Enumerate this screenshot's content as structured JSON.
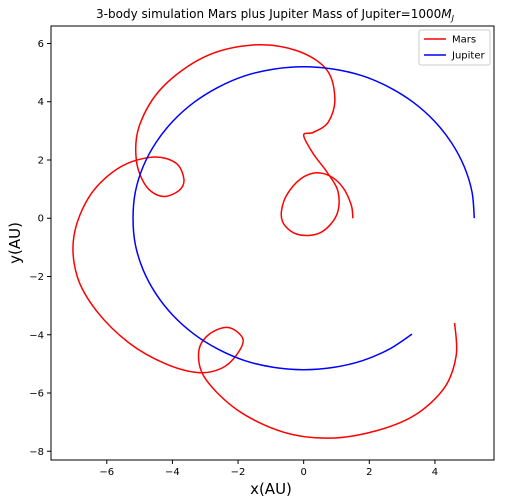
{
  "chart_data": {
    "type": "line",
    "title_main": "3-body simulation  Mars plus Jupiter  Mass of Jupiter=1000",
    "title_sym": "M",
    "title_sub": "J",
    "xlabel": "x(AU)",
    "ylabel": "y(AU)",
    "xlim": [
      -7.7,
      5.8
    ],
    "ylim": [
      -8.3,
      6.6
    ],
    "xticks": [
      -6,
      -4,
      -2,
      0,
      2,
      4
    ],
    "yticks": [
      -8,
      -6,
      -4,
      -2,
      0,
      2,
      4,
      6
    ],
    "grid": false,
    "legend_position": "top-right",
    "series": [
      {
        "name": "Mars",
        "color": "#ff0000",
        "x": [
          1.5,
          1.45,
          1.2,
          0.8,
          0.3,
          -0.2,
          -0.6,
          -0.65,
          -0.2,
          0.5,
          1.0,
          1.05,
          0.7,
          0.3,
          0.0,
          0.3,
          0.75,
          0.95,
          0.7,
          -0.2,
          -1.5,
          -3.0,
          -4.3,
          -5.0,
          -5.1,
          -4.8,
          -4.3,
          -3.8,
          -3.65,
          -3.9,
          -4.6,
          -5.6,
          -6.5,
          -7.0,
          -6.9,
          -6.3,
          -5.3,
          -4.2,
          -3.2,
          -2.5,
          -2.05,
          -1.85,
          -2.3,
          -2.9,
          -3.2,
          -3.0,
          -2.0,
          -0.6,
          0.8,
          2.2,
          3.4,
          4.3,
          4.65,
          4.6
        ],
        "y": [
          0.0,
          0.45,
          1.05,
          1.45,
          1.55,
          1.25,
          0.6,
          -0.1,
          -0.55,
          -0.5,
          0.1,
          0.9,
          1.6,
          2.2,
          2.85,
          2.95,
          3.3,
          4.1,
          5.1,
          5.75,
          5.95,
          5.55,
          4.5,
          3.2,
          2.0,
          1.1,
          0.75,
          0.95,
          1.35,
          1.9,
          2.1,
          1.75,
          0.8,
          -0.6,
          -2.0,
          -3.2,
          -4.3,
          -5.0,
          -5.3,
          -5.15,
          -4.7,
          -4.15,
          -3.75,
          -4.0,
          -4.6,
          -5.5,
          -6.6,
          -7.35,
          -7.55,
          -7.3,
          -6.75,
          -5.8,
          -4.7,
          -3.6
        ]
      },
      {
        "name": "Jupiter",
        "color": "#0000ff",
        "x": [
          5.2,
          5.13,
          4.89,
          4.5,
          3.98,
          3.34,
          2.6,
          1.79,
          0.91,
          0.0,
          -0.91,
          -1.79,
          -2.6,
          -3.34,
          -3.98,
          -4.5,
          -4.89,
          -5.13,
          -5.2,
          -5.13,
          -4.89,
          -4.5,
          -3.98,
          -3.34,
          -2.6,
          -1.79,
          -0.91,
          0.0,
          0.91,
          1.79,
          2.6,
          3.3
        ],
        "y": [
          0.0,
          0.9,
          1.78,
          2.6,
          3.34,
          3.98,
          4.5,
          4.89,
          5.12,
          5.2,
          5.12,
          4.89,
          4.5,
          3.98,
          3.34,
          2.6,
          1.78,
          0.9,
          0.0,
          -0.9,
          -1.78,
          -2.6,
          -3.34,
          -3.98,
          -4.5,
          -4.89,
          -5.12,
          -5.2,
          -5.12,
          -4.89,
          -4.5,
          -3.98
        ]
      }
    ]
  }
}
